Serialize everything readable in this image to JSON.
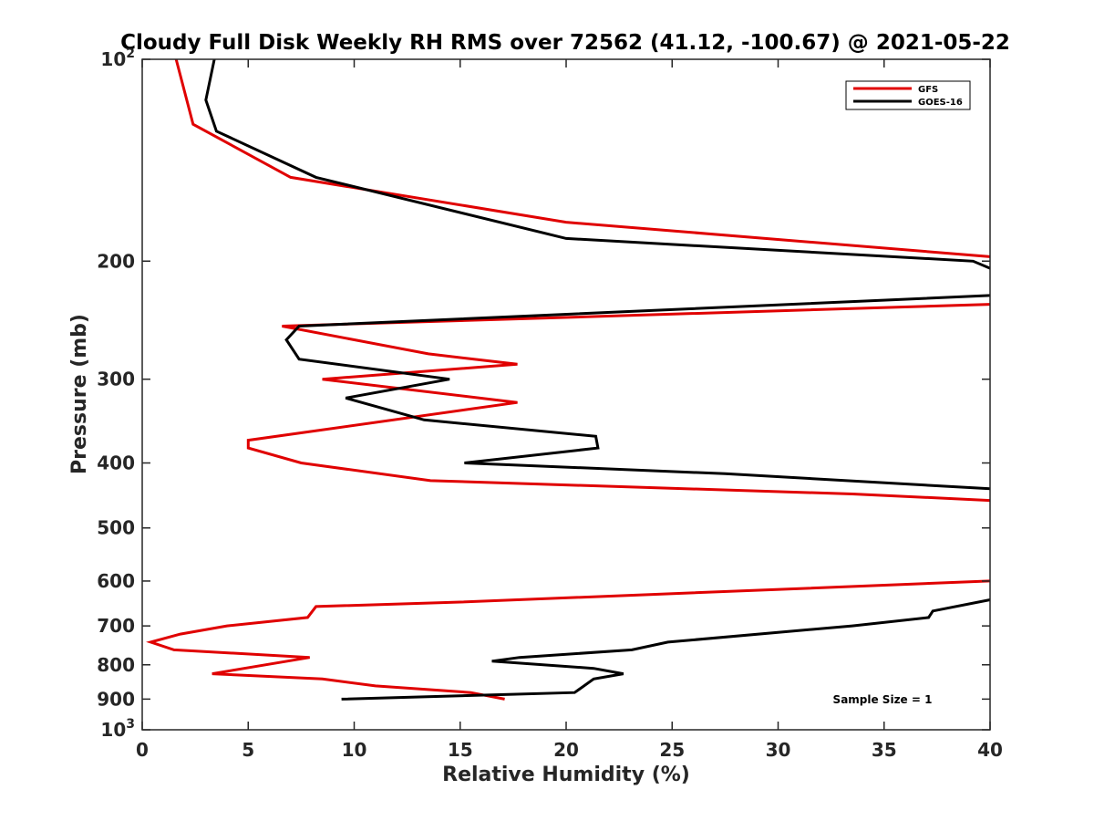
{
  "chart_data": {
    "type": "line",
    "title": "Cloudy Full Disk Weekly RH RMS over 72562 (41.12, -100.67) @ 2021-05-22",
    "xlabel": "Relative Humidity (%)",
    "ylabel": "Pressure (mb)",
    "xlim": [
      0,
      40
    ],
    "ylim": [
      100,
      1000
    ],
    "y_scale": "log",
    "y_reversed": true,
    "grid": false,
    "legend_position": "top-right",
    "x_ticks": [
      "0",
      "5",
      "10",
      "15",
      "20",
      "25",
      "30",
      "35",
      "40"
    ],
    "x_tick_values": [
      0,
      5,
      10,
      15,
      20,
      25,
      30,
      35,
      40
    ],
    "y_ticks": [
      {
        "value": 100,
        "base": "10",
        "exp": "2"
      },
      {
        "value": 200,
        "label": "200"
      },
      {
        "value": 300,
        "label": "300"
      },
      {
        "value": 400,
        "label": "400"
      },
      {
        "value": 500,
        "label": "500"
      },
      {
        "value": 600,
        "label": "600"
      },
      {
        "value": 700,
        "label": "700"
      },
      {
        "value": 800,
        "label": "800"
      },
      {
        "value": 900,
        "label": "900"
      },
      {
        "value": 1000,
        "base": "10",
        "exp": "3"
      }
    ],
    "annotation": "Sample Size = 1",
    "series": [
      {
        "name": "GFS",
        "color": "#e00000",
        "points": [
          [
            1.6,
            100
          ],
          [
            2.4,
            125
          ],
          [
            7.0,
            150
          ],
          [
            20.0,
            175
          ],
          [
            40.0,
            197
          ],
          [
            null,
            null
          ],
          [
            40.0,
            232
          ],
          [
            6.6,
            250
          ],
          [
            13.5,
            275
          ],
          [
            17.7,
            285
          ],
          [
            8.5,
            300
          ],
          [
            17.7,
            325
          ],
          [
            5.0,
            370
          ],
          [
            5.0,
            380
          ],
          [
            7.5,
            400
          ],
          [
            13.6,
            425
          ],
          [
            33.5,
            445
          ],
          [
            40.0,
            455
          ],
          [
            null,
            null
          ],
          [
            40.0,
            600
          ],
          [
            15.0,
            645
          ],
          [
            8.2,
            655
          ],
          [
            7.8,
            680
          ],
          [
            4.0,
            700
          ],
          [
            1.8,
            720
          ],
          [
            0.4,
            740
          ],
          [
            1.5,
            760
          ],
          [
            7.9,
            780
          ],
          [
            3.3,
            825
          ],
          [
            8.5,
            840
          ],
          [
            11.0,
            860
          ],
          [
            15.5,
            880
          ],
          [
            17.1,
            900
          ]
        ]
      },
      {
        "name": "GOES-16",
        "color": "#000000",
        "points": [
          [
            3.4,
            100
          ],
          [
            3.0,
            115
          ],
          [
            3.5,
            128
          ],
          [
            8.2,
            150
          ],
          [
            20.0,
            185
          ],
          [
            39.2,
            200
          ],
          [
            40.0,
            205
          ],
          [
            null,
            null
          ],
          [
            40.0,
            225
          ],
          [
            7.4,
            250
          ],
          [
            6.8,
            262
          ],
          [
            7.4,
            280
          ],
          [
            14.5,
            300
          ],
          [
            9.6,
            320
          ],
          [
            13.3,
            345
          ],
          [
            21.4,
            365
          ],
          [
            21.5,
            380
          ],
          [
            15.2,
            400
          ],
          [
            27.5,
            415
          ],
          [
            40.0,
            437
          ],
          [
            null,
            null
          ],
          [
            40.0,
            640
          ],
          [
            37.3,
            665
          ],
          [
            37.1,
            680
          ],
          [
            33.5,
            700
          ],
          [
            24.8,
            740
          ],
          [
            23.1,
            760
          ],
          [
            17.8,
            780
          ],
          [
            16.5,
            790
          ],
          [
            21.3,
            810
          ],
          [
            22.7,
            825
          ],
          [
            21.3,
            840
          ],
          [
            20.4,
            880
          ],
          [
            9.4,
            900
          ]
        ]
      }
    ]
  }
}
